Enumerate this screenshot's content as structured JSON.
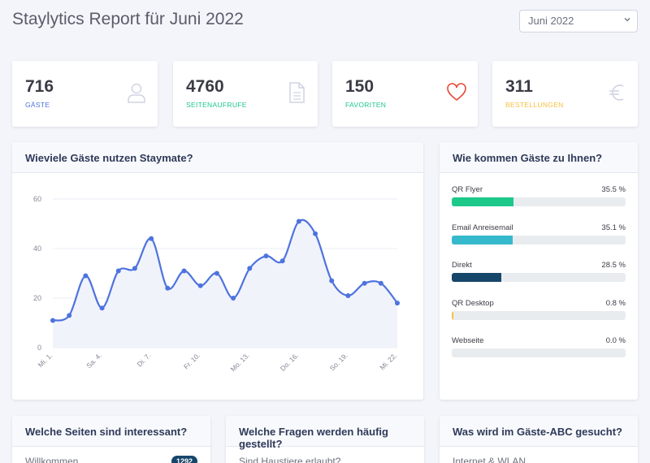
{
  "header": {
    "title": "Staylytics Report für Juni 2022",
    "month_select": "Juni 2022"
  },
  "stats": [
    {
      "value": "716",
      "label": "GÄSTE",
      "color": "#4e73df",
      "icon": "user-icon"
    },
    {
      "value": "4760",
      "label": "SEITENAUFRUFE",
      "color": "#1cc88a",
      "icon": "document-icon"
    },
    {
      "value": "150",
      "label": "FAVORITEN",
      "color": "#1cc88a",
      "icon": "heart-icon"
    },
    {
      "value": "311",
      "label": "BESTELLUNGEN",
      "color": "#f6c23e",
      "icon": "euro-icon"
    }
  ],
  "usage_chart": {
    "title": "Wieviele Gäste nutzen Staymate?",
    "chart_data": {
      "type": "area",
      "x": [
        "Mi. 1.",
        "Do. 2.",
        "Fr. 3.",
        "Sa. 4.",
        "So. 5.",
        "Mo. 6.",
        "Di. 7.",
        "Mi. 8.",
        "Do. 9.",
        "Fr. 10.",
        "Sa. 11.",
        "So. 12.",
        "Mo. 13.",
        "Di. 14.",
        "Mi. 15.",
        "Do. 16.",
        "Fr. 17.",
        "Sa. 18.",
        "So. 19.",
        "Mo. 20.",
        "Di. 21.",
        "Mi. 22."
      ],
      "x_ticks": [
        "Mi. 1.",
        "Sa. 4.",
        "Di. 7.",
        "Fr. 10.",
        "Mo. 13.",
        "Do. 16.",
        "So. 19.",
        "Mi. 22."
      ],
      "values": [
        11,
        13,
        29,
        16,
        31,
        32,
        44,
        24,
        31,
        25,
        30,
        20,
        32,
        37,
        35,
        51,
        46,
        27,
        21,
        26,
        26,
        18
      ],
      "ylim": [
        0,
        60
      ],
      "y_ticks": [
        0,
        20,
        40,
        60
      ],
      "line_color": "#4e73df",
      "fill_color": "#f1f3fb",
      "grid": true
    }
  },
  "sources": {
    "title": "Wie kommen Gäste zu Ihnen?",
    "chart_data": {
      "type": "bar",
      "categories": [
        "QR Flyer",
        "Email Anreisemail",
        "Direkt",
        "QR Desktop",
        "Webseite"
      ],
      "values": [
        35.5,
        35.1,
        28.5,
        0.8,
        0.0
      ],
      "labels": [
        "35.5 %",
        "35.1 %",
        "28.5 %",
        "0.8 %",
        "0.0 %"
      ],
      "colors": [
        "#1cc88a",
        "#36b9cc",
        "#17466b",
        "#f6c23e",
        "#e9ecef"
      ]
    }
  },
  "bottom_cards": [
    {
      "title": "Welche Seiten sind interessant?",
      "first_item": "Willkommen",
      "badge": "1292"
    },
    {
      "title": "Welche Fragen werden häufig gestellt?",
      "first_item": "Sind Haustiere erlaubt?"
    },
    {
      "title": "Was wird im Gäste-ABC gesucht?",
      "first_item": "Internet & WLAN"
    }
  ]
}
